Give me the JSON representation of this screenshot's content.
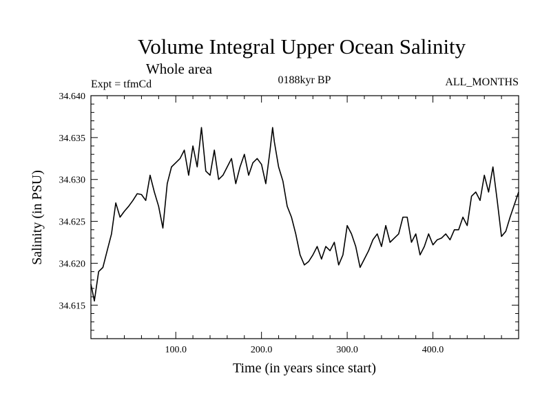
{
  "chart_data": {
    "type": "line",
    "title": "Volume Integral Upper Ocean Salinity",
    "subtitle": "Whole area",
    "annotations": {
      "experiment": "Expt = tfmCd",
      "period": "0188kyr BP",
      "months": "ALL_MONTHS"
    },
    "xlabel": "Time (in years since start)",
    "ylabel": "Salinity (in PSU)",
    "xlim": [
      1,
      500
    ],
    "ylim": [
      34.611,
      34.64
    ],
    "x_ticks": [
      100,
      200,
      300,
      400
    ],
    "x_tick_labels": [
      "100.0",
      "200.0",
      "300.0",
      "400.0"
    ],
    "y_ticks": [
      34.615,
      34.62,
      34.625,
      34.63,
      34.635,
      34.64
    ],
    "y_tick_labels": [
      "34.615",
      "34.620",
      "34.625",
      "34.630",
      "34.635",
      "34.640"
    ],
    "grid": false,
    "line_color": "#000000",
    "series": [
      {
        "x": [
          1,
          5,
          10,
          15,
          20,
          25,
          30,
          35,
          40,
          45,
          50,
          55,
          60,
          65,
          70,
          75,
          80,
          85,
          90,
          95,
          100,
          105,
          110,
          115,
          120,
          125,
          130,
          135,
          140,
          145,
          150,
          155,
          160,
          165,
          170,
          175,
          180,
          185,
          190,
          195,
          200,
          205,
          210,
          213,
          215,
          220,
          225,
          230,
          235,
          240,
          245,
          250,
          255,
          260,
          265,
          270,
          275,
          280,
          285,
          290,
          295,
          300,
          305,
          310,
          315,
          320,
          325,
          330,
          335,
          340,
          345,
          350,
          355,
          360,
          365,
          370,
          375,
          380,
          385,
          390,
          395,
          400,
          405,
          410,
          415,
          420,
          425,
          430,
          435,
          440,
          445,
          450,
          455,
          460,
          465,
          470,
          475,
          480,
          485,
          490,
          495,
          500
        ],
        "values": [
          34.6175,
          34.6155,
          34.619,
          34.6195,
          34.6215,
          34.6235,
          34.6272,
          34.6255,
          34.6262,
          34.6268,
          34.6275,
          34.6283,
          34.6282,
          34.6275,
          34.6305,
          34.6285,
          34.6268,
          34.6242,
          34.6295,
          34.6315,
          34.632,
          34.6325,
          34.6335,
          34.6305,
          34.634,
          34.6315,
          34.6362,
          34.631,
          34.6305,
          34.6335,
          34.63,
          34.6305,
          34.6315,
          34.6325,
          34.6295,
          34.6315,
          34.633,
          34.6305,
          34.632,
          34.6325,
          34.6318,
          34.6295,
          34.6335,
          34.6362,
          34.6345,
          34.6315,
          34.6298,
          34.6268,
          34.6255,
          34.6235,
          34.621,
          34.6198,
          34.6202,
          34.621,
          34.622,
          34.6205,
          34.622,
          34.6215,
          34.6225,
          34.6198,
          34.621,
          34.6245,
          34.6235,
          34.622,
          34.6195,
          34.6205,
          34.6215,
          34.6228,
          34.6235,
          34.622,
          34.6245,
          34.6225,
          34.623,
          34.6235,
          34.6255,
          34.6255,
          34.6225,
          34.6235,
          34.621,
          34.622,
          34.6235,
          34.6222,
          34.6228,
          34.623,
          34.6235,
          34.6228,
          34.624,
          34.624,
          34.6255,
          34.6245,
          34.628,
          34.6285,
          34.6275,
          34.6305,
          34.6285,
          34.6315,
          34.6275,
          34.6232,
          34.6238,
          34.6255,
          34.627,
          34.6285
        ]
      }
    ]
  }
}
